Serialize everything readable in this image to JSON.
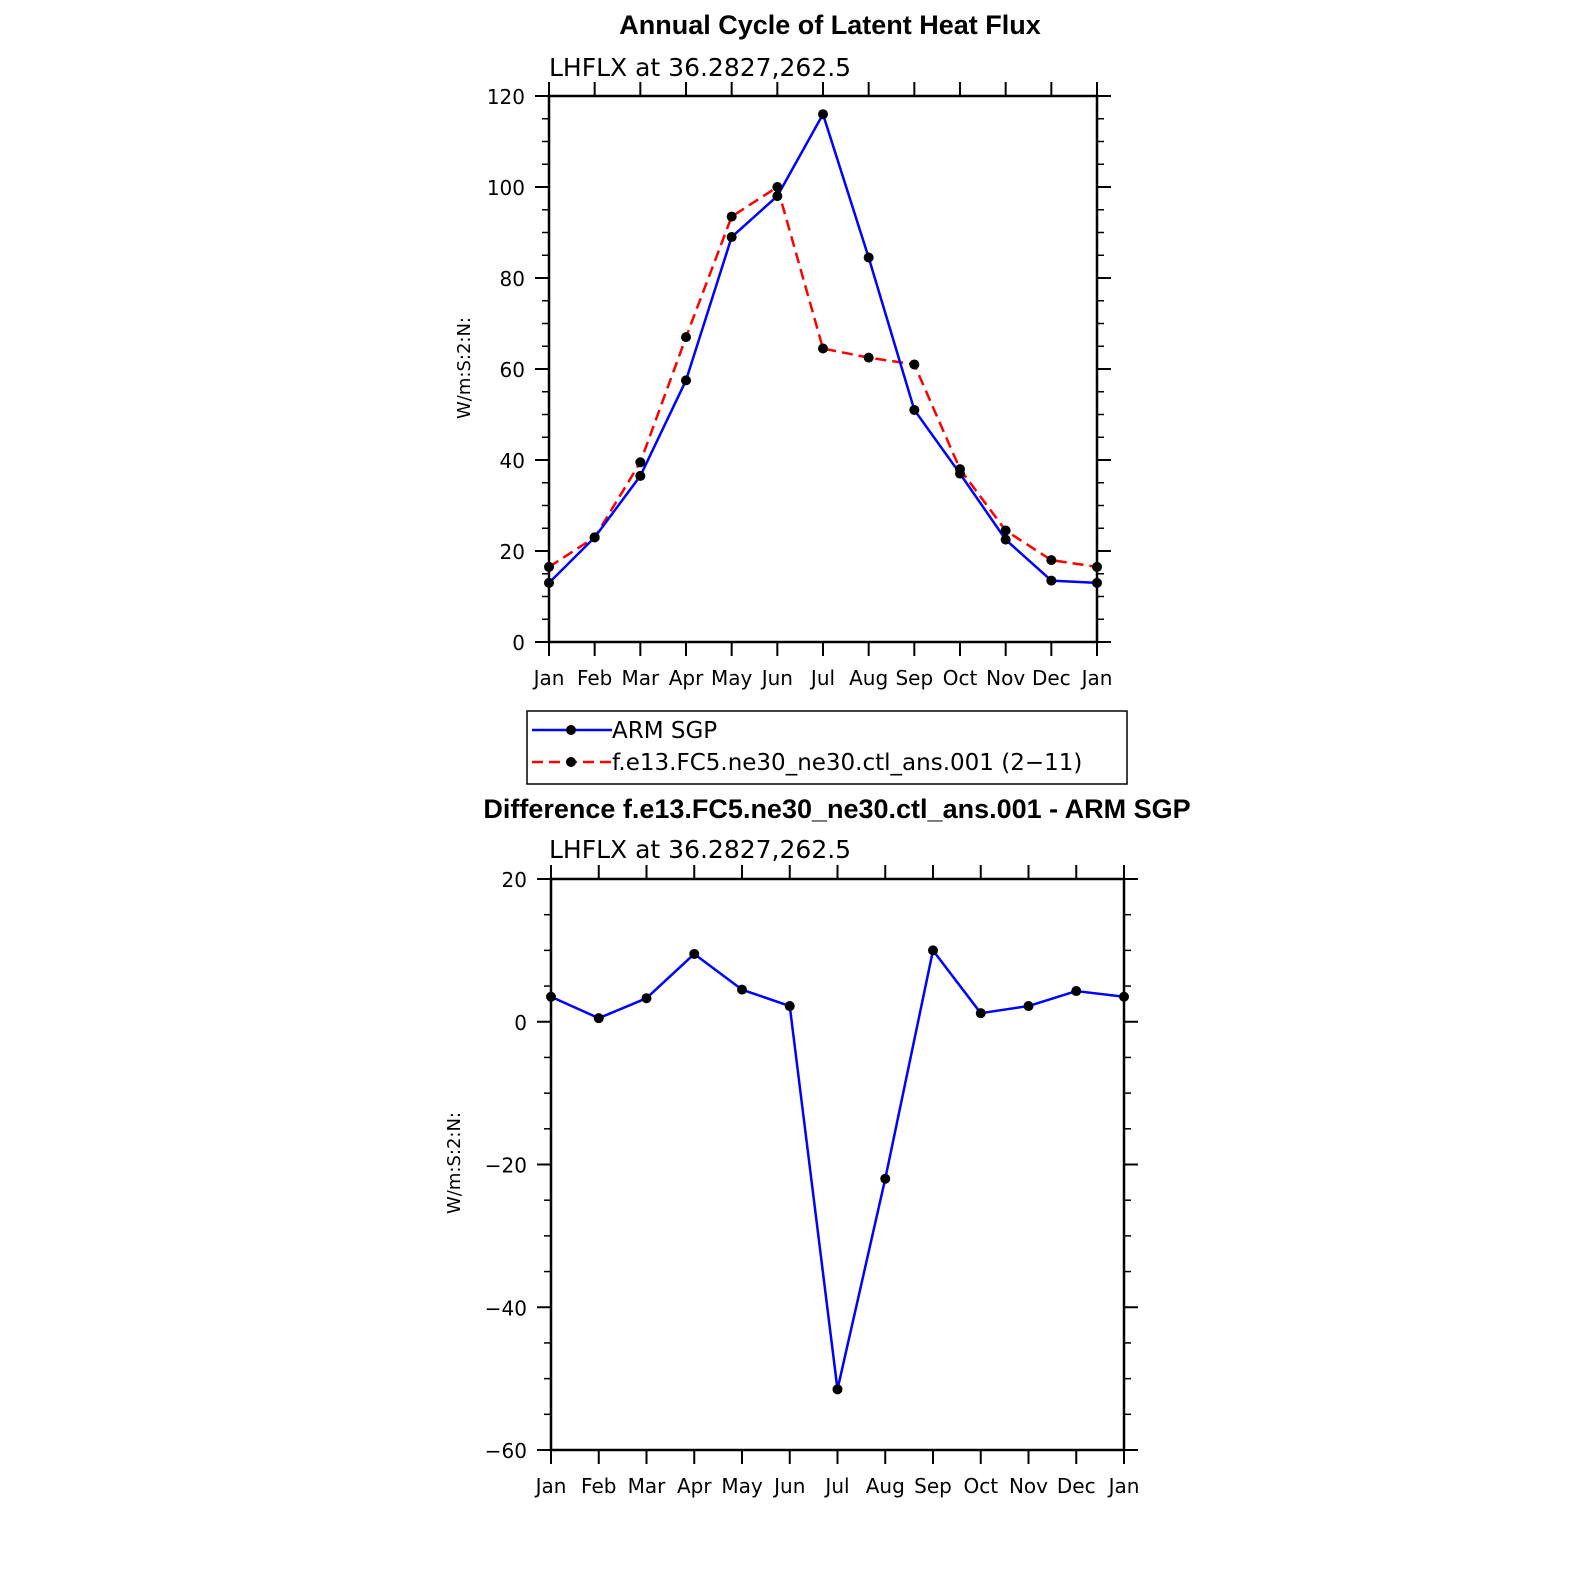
{
  "chart_data": [
    {
      "type": "line",
      "title": "Annual Cycle of Latent Heat Flux",
      "subtitle": "LHFLX at 36.2827,262.5",
      "xlabel": "",
      "ylabel": "W/m:S:2:N:",
      "categories": [
        "Jan",
        "Feb",
        "Mar",
        "Apr",
        "May",
        "Jun",
        "Jul",
        "Aug",
        "Sep",
        "Oct",
        "Nov",
        "Dec",
        "Jan"
      ],
      "ylim": [
        0,
        120
      ],
      "yticks": [
        0,
        20,
        40,
        60,
        80,
        100,
        120
      ],
      "ytick_labels": [
        "0",
        "20",
        "40",
        "60",
        "80",
        "100",
        "120"
      ],
      "legend_position": "below",
      "series": [
        {
          "name": "ARM SGP",
          "color": "#0000ff",
          "dash": "solid",
          "values": [
            13,
            23,
            36.5,
            57.5,
            89,
            98,
            116,
            84.5,
            51,
            37,
            22.5,
            13.5,
            13
          ]
        },
        {
          "name": "f.e13.FC5.ne30_ne30.ctl_ans.001 (2−11)",
          "color": "#ff0000",
          "dash": "dashed",
          "values": [
            16.5,
            23,
            39.5,
            67,
            93.5,
            100,
            64.5,
            62.5,
            61,
            38,
            24.5,
            18,
            16.5
          ]
        }
      ]
    },
    {
      "type": "line",
      "title": "Difference f.e13.FC5.ne30_ne30.ctl_ans.001 - ARM SGP",
      "subtitle": "LHFLX at 36.2827,262.5",
      "xlabel": "",
      "ylabel": "W/m:S:2:N:",
      "categories": [
        "Jan",
        "Feb",
        "Mar",
        "Apr",
        "May",
        "Jun",
        "Jul",
        "Aug",
        "Sep",
        "Oct",
        "Nov",
        "Dec",
        "Jan"
      ],
      "ylim": [
        -60,
        20
      ],
      "yticks": [
        -60,
        -40,
        -20,
        0,
        20
      ],
      "ytick_labels": [
        "−60",
        "−40",
        "−20",
        "0",
        "20"
      ],
      "series": [
        {
          "name": "Difference",
          "color": "#0000ff",
          "dash": "solid",
          "values": [
            3.5,
            0.5,
            3.3,
            9.5,
            4.5,
            2.2,
            -51.5,
            -22,
            10,
            1.2,
            2.2,
            4.3,
            3.5
          ]
        }
      ]
    }
  ]
}
